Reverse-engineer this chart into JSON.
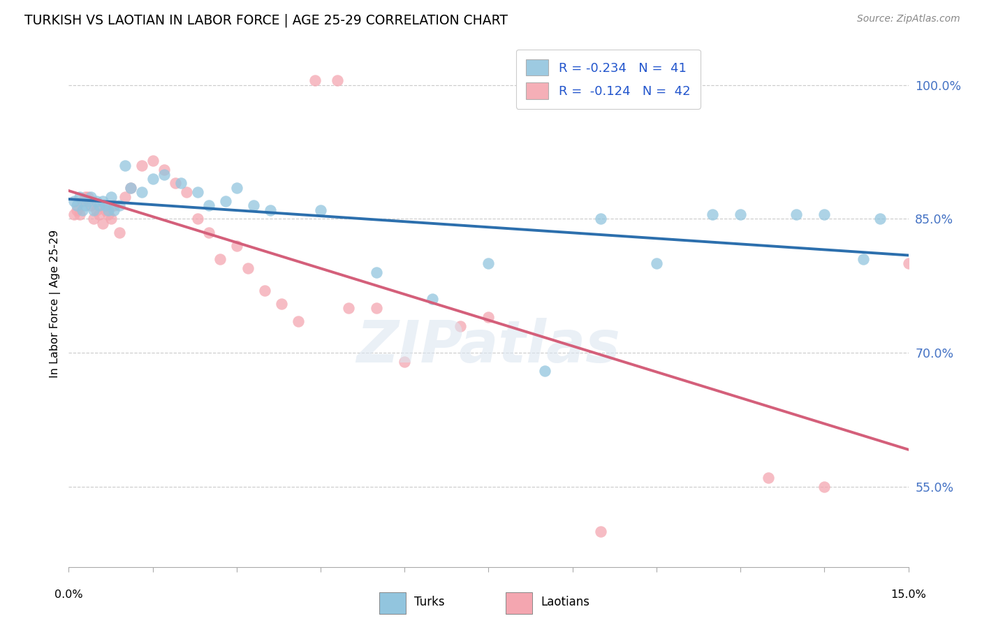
{
  "title": "TURKISH VS LAOTIAN IN LABOR FORCE | AGE 25-29 CORRELATION CHART",
  "source": "Source: ZipAtlas.com",
  "ylabel": "In Labor Force | Age 25-29",
  "y_ticks": [
    55.0,
    70.0,
    85.0,
    100.0
  ],
  "y_tick_labels": [
    "55.0%",
    "70.0%",
    "85.0%",
    "100.0%"
  ],
  "x_range": [
    0.0,
    15.0
  ],
  "y_range": [
    46.0,
    105.0
  ],
  "turks_color": "#92c5de",
  "laotians_color": "#f4a6b0",
  "trend_turks_color": "#2c6fad",
  "trend_laotians_color": "#d45f7a",
  "R_turks": -0.234,
  "N_turks": 41,
  "R_laotians": -0.124,
  "N_laotians": 42,
  "turks_x": [
    0.1,
    0.15,
    0.2,
    0.25,
    0.3,
    0.35,
    0.4,
    0.45,
    0.5,
    0.55,
    0.6,
    0.65,
    0.7,
    0.75,
    0.8,
    0.9,
    1.0,
    1.1,
    1.3,
    1.5,
    1.7,
    2.0,
    2.3,
    2.5,
    2.8,
    3.0,
    3.3,
    3.6,
    4.5,
    5.5,
    6.5,
    7.5,
    8.5,
    9.5,
    10.5,
    11.5,
    12.0,
    13.0,
    13.5,
    14.2,
    14.5
  ],
  "turks_y": [
    87.0,
    86.5,
    87.5,
    86.0,
    86.5,
    87.0,
    87.5,
    86.0,
    87.0,
    86.5,
    87.0,
    86.5,
    86.0,
    87.5,
    86.0,
    86.5,
    91.0,
    88.5,
    88.0,
    89.5,
    90.0,
    89.0,
    88.0,
    86.5,
    87.0,
    88.5,
    86.5,
    86.0,
    86.0,
    79.0,
    76.0,
    80.0,
    68.0,
    85.0,
    80.0,
    85.5,
    85.5,
    85.5,
    85.5,
    80.5,
    85.0
  ],
  "laotians_x": [
    0.1,
    0.15,
    0.2,
    0.25,
    0.3,
    0.35,
    0.4,
    0.45,
    0.5,
    0.55,
    0.6,
    0.65,
    0.7,
    0.75,
    0.8,
    0.9,
    1.0,
    1.1,
    1.3,
    1.5,
    1.7,
    1.9,
    2.1,
    2.3,
    2.5,
    2.7,
    3.0,
    3.2,
    3.5,
    3.8,
    4.1,
    4.4,
    4.8,
    5.0,
    5.5,
    6.0,
    7.0,
    7.5,
    9.5,
    12.5,
    13.5,
    15.0
  ],
  "laotians_y": [
    85.5,
    86.0,
    85.5,
    87.0,
    87.5,
    87.5,
    86.5,
    85.0,
    86.0,
    85.5,
    84.5,
    86.0,
    85.5,
    85.0,
    86.5,
    83.5,
    87.5,
    88.5,
    91.0,
    91.5,
    90.5,
    89.0,
    88.0,
    85.0,
    83.5,
    80.5,
    82.0,
    79.5,
    77.0,
    75.5,
    73.5,
    100.5,
    100.5,
    75.0,
    75.0,
    69.0,
    73.0,
    74.0,
    50.0,
    56.0,
    55.0,
    80.0
  ]
}
